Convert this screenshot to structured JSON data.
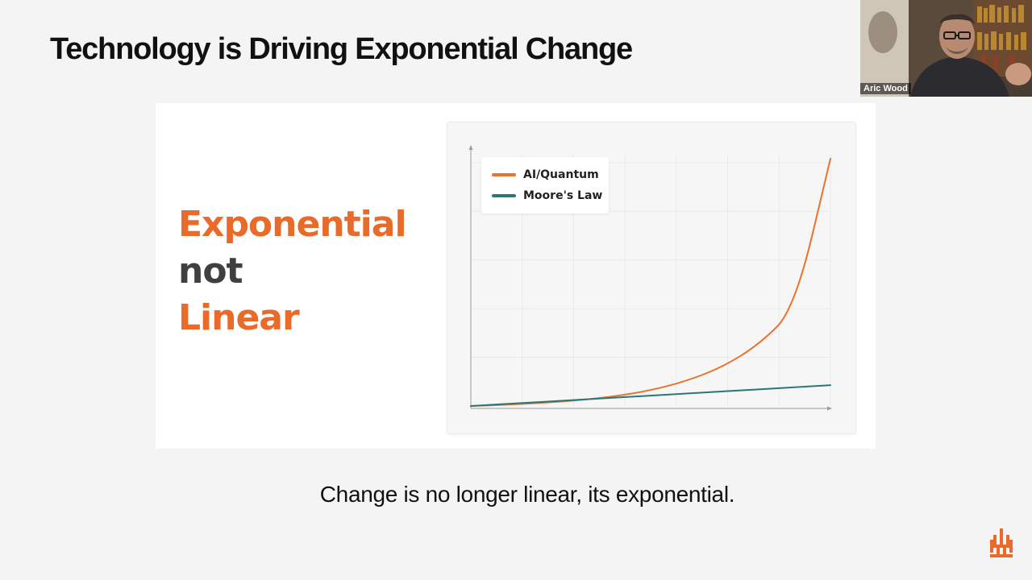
{
  "slide": {
    "title": "Technology is Driving Exponential Change",
    "headline": [
      "Exponential",
      "not",
      "Linear"
    ],
    "caption": "Change is no longer linear, its exponential."
  },
  "colors": {
    "accent": "#ea6a2a",
    "muted_text": "#404040",
    "ai_line": "#e8722e",
    "moores_line": "#2a7778",
    "background": "#f4f4f4",
    "panel": "#ffffff"
  },
  "video": {
    "participant_name": "Aric Wood"
  },
  "logo": {
    "icon": "brand-logo-icon",
    "color": "#ea6a2a"
  },
  "chart_data": {
    "type": "line",
    "title": "",
    "xlabel": "",
    "ylabel": "",
    "axis_tick_labels": false,
    "grid": true,
    "legend_position": "top-left",
    "x": [
      0,
      1,
      2,
      3,
      4,
      5,
      6,
      7,
      8,
      9,
      10
    ],
    "series": [
      {
        "name": "AI/Quantum",
        "color": "#e8722e",
        "values": [
          0.0,
          0.5,
          1.2,
          2.2,
          3.7,
          6.0,
          9.6,
          15.0,
          23.5,
          37.0,
          95.0
        ]
      },
      {
        "name": "Moore's Law",
        "color": "#2a7778",
        "values": [
          0.0,
          0.8,
          1.6,
          2.4,
          3.2,
          4.0,
          4.8,
          5.6,
          6.4,
          7.2,
          8.0
        ]
      }
    ]
  }
}
